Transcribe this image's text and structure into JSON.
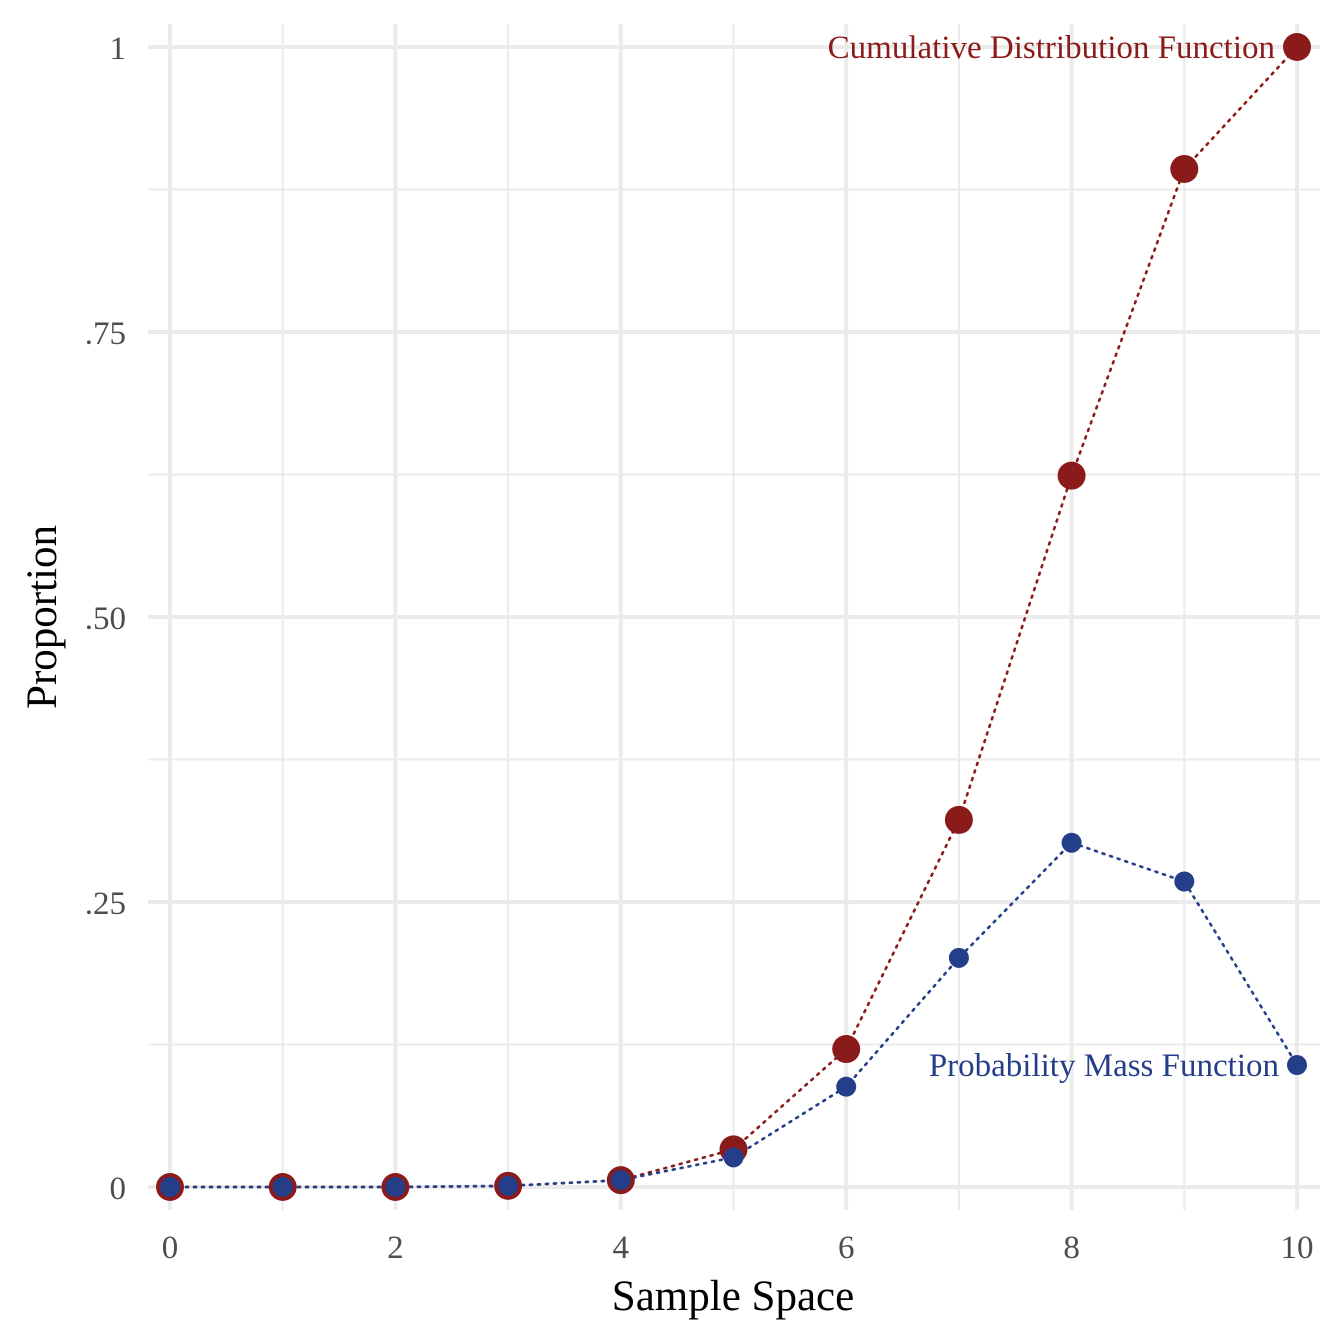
{
  "chart_data": {
    "type": "line",
    "xlabel": "Sample Space",
    "ylabel": "Proportion",
    "xlim": [
      0,
      10
    ],
    "ylim": [
      0,
      1
    ],
    "x_ticks": [
      0,
      2,
      4,
      6,
      8,
      10
    ],
    "x_tick_labels": [
      "0",
      "2",
      "4",
      "6",
      "8",
      "10"
    ],
    "y_ticks": [
      0,
      0.25,
      0.5,
      0.75,
      1
    ],
    "y_tick_labels": [
      "0",
      ".25",
      ".50",
      ".75",
      "1"
    ],
    "grid": true,
    "line_style": "dotted",
    "x": [
      0,
      1,
      2,
      3,
      4,
      5,
      6,
      7,
      8,
      9,
      10
    ],
    "series": [
      {
        "name": "Cumulative Distribution Function",
        "color": "#8B1A1A",
        "values": [
          0.0,
          0.0,
          0.0,
          0.001,
          0.006,
          0.033,
          0.121,
          0.322,
          0.624,
          0.893,
          1.0
        ]
      },
      {
        "name": "Probability Mass Function",
        "color": "#253E8A",
        "values": [
          0.0,
          0.0,
          0.0,
          0.001,
          0.006,
          0.026,
          0.088,
          0.201,
          0.302,
          0.268,
          0.107
        ]
      }
    ]
  }
}
